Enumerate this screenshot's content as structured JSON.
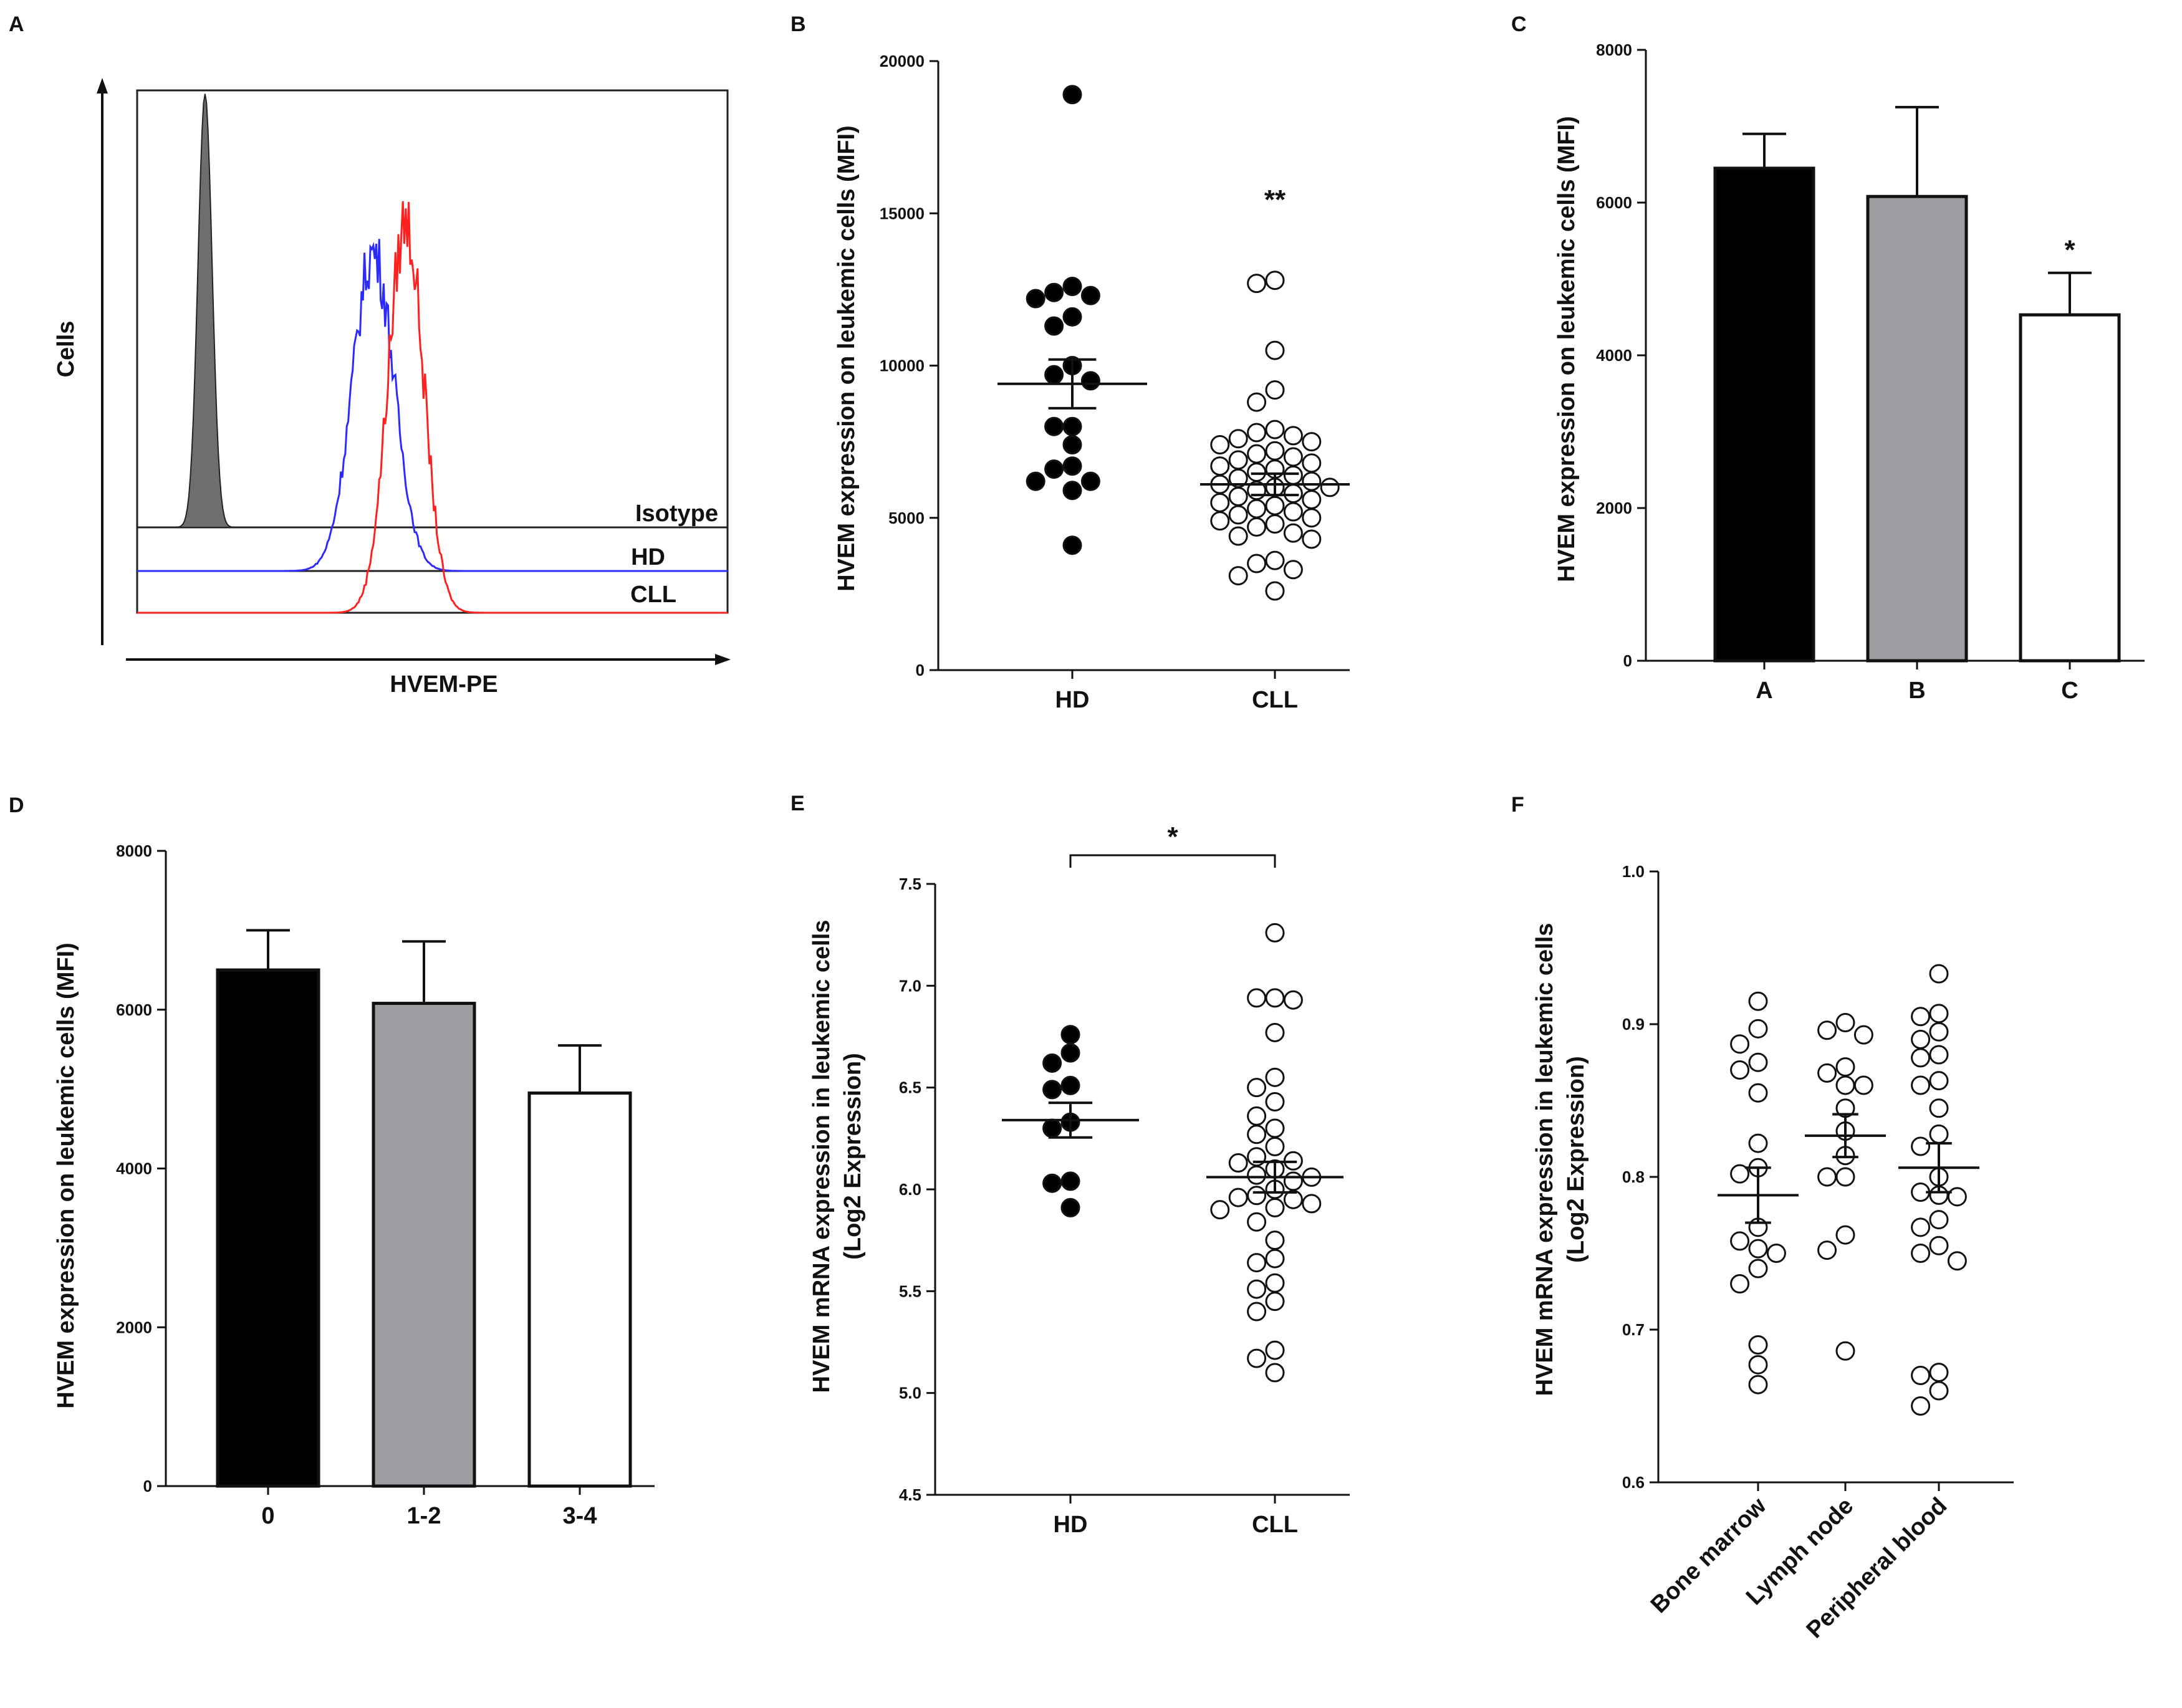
{
  "colors": {
    "black": "#000000",
    "gray": "#9e9ea2",
    "white": "#ffffff",
    "hd_line": "#2b2bff",
    "cll_line": "#ff2020",
    "isotype_fill": "#6e6e6e"
  },
  "chart_data": [
    {
      "id": "A",
      "type": "histogram",
      "panel_label": "A",
      "xlabel": "HVEM-PE",
      "ylabel": "Cells",
      "legend": [
        "Isotype",
        "HD",
        "CLL"
      ],
      "series": [
        {
          "name": "Isotype",
          "center": 0.115,
          "sd": 0.012,
          "peak": 0.83,
          "color": "isotype_fill",
          "filled": true
        },
        {
          "name": "HD",
          "center": 0.4,
          "sd": 0.035,
          "peak": 0.61,
          "color": "hd_line",
          "filled": false
        },
        {
          "name": "CLL",
          "center": 0.455,
          "sd": 0.03,
          "peak": 0.75,
          "color": "cll_line",
          "filled": false
        }
      ]
    },
    {
      "id": "B",
      "type": "scatter",
      "panel_label": "B",
      "ylabel": "HVEM expression on leukemic cells (MFI)",
      "ylim": [
        0,
        20000
      ],
      "yticks": [
        0,
        5000,
        10000,
        15000,
        20000
      ],
      "ytick_labels": [
        "0",
        "5000",
        "10000",
        "15000",
        "20000"
      ],
      "categories": [
        "HD",
        "CLL"
      ],
      "groups": [
        {
          "name": "HD",
          "filled": true,
          "mean": 9400,
          "sem": 800,
          "values": [
            18900,
            12600,
            12400,
            12200,
            12300,
            11600,
            11300,
            10000,
            9700,
            9500,
            8000,
            8000,
            7400,
            6700,
            6600,
            6200,
            6200,
            5900,
            4100
          ]
        },
        {
          "name": "CLL",
          "filled": false,
          "mean": 6100,
          "sem": 350,
          "values": [
            12800,
            12700,
            10500,
            9200,
            8800,
            7900,
            7800,
            7700,
            7600,
            7500,
            7400,
            7200,
            7100,
            7000,
            6900,
            6800,
            6700,
            6600,
            6500,
            6400,
            6300,
            6200,
            6100,
            6000,
            6000,
            5900,
            5800,
            5700,
            5600,
            5500,
            5400,
            5300,
            5200,
            5100,
            5000,
            4900,
            4800,
            4700,
            4500,
            4400,
            4300,
            3600,
            3500,
            3300,
            3100,
            2600
          ]
        }
      ],
      "annotation": "**"
    },
    {
      "id": "C",
      "type": "bar",
      "panel_label": "C",
      "ylabel": "HVEM expression on leukemic cells (MFI)",
      "ylim": [
        0,
        8000
      ],
      "yticks": [
        0,
        2000,
        4000,
        6000,
        8000
      ],
      "ytick_labels": [
        "0",
        "2000",
        "4000",
        "6000",
        "8000"
      ],
      "categories": [
        "A",
        "B",
        "C"
      ],
      "values": [
        6450,
        6080,
        4530
      ],
      "errors": [
        450,
        1170,
        550
      ],
      "fills": [
        "black",
        "gray",
        "white"
      ],
      "annotations": [
        "",
        "",
        "*"
      ]
    },
    {
      "id": "D",
      "type": "bar",
      "panel_label": "D",
      "ylabel": "HVEM expression on leukemic cells (MFI)",
      "ylim": [
        0,
        8000
      ],
      "yticks": [
        0,
        2000,
        4000,
        6000,
        8000
      ],
      "ytick_labels": [
        "0",
        "2000",
        "4000",
        "6000",
        "8000"
      ],
      "categories": [
        "0",
        "1-2",
        "3-4"
      ],
      "values": [
        6500,
        6080,
        4950
      ],
      "errors": [
        500,
        780,
        600
      ],
      "fills": [
        "black",
        "gray",
        "white"
      ]
    },
    {
      "id": "E",
      "type": "scatter",
      "panel_label": "E",
      "ylabel": "HVEM mRNA expression in leukemic cells (Log2 Expression)",
      "ylabel_lines": [
        "HVEM mRNA expression in leukemic cells",
        "(Log2 Expression)"
      ],
      "ylim": [
        4.5,
        7.5
      ],
      "yticks": [
        4.5,
        5.0,
        5.5,
        6.0,
        6.5,
        7.0,
        7.5
      ],
      "ytick_labels": [
        "4.5",
        "5.0",
        "5.5",
        "6.0",
        "6.5",
        "7.0",
        "7.5"
      ],
      "categories": [
        "HD",
        "CLL"
      ],
      "groups": [
        {
          "name": "HD",
          "filled": true,
          "mean": 6.34,
          "sem": 0.085,
          "values": [
            6.76,
            6.67,
            6.62,
            6.51,
            6.49,
            6.33,
            6.3,
            6.04,
            6.03,
            5.91
          ]
        },
        {
          "name": "CLL",
          "filled": false,
          "mean": 6.06,
          "sem": 0.075,
          "values": [
            7.26,
            6.94,
            6.94,
            6.93,
            6.77,
            6.55,
            6.5,
            6.43,
            6.36,
            6.3,
            6.27,
            6.21,
            6.16,
            6.14,
            6.13,
            6.1,
            6.07,
            6.06,
            6.04,
            6.0,
            5.97,
            5.96,
            5.95,
            5.93,
            5.91,
            5.9,
            5.84,
            5.75,
            5.66,
            5.64,
            5.54,
            5.51,
            5.45,
            5.4,
            5.21,
            5.17,
            5.1
          ]
        }
      ],
      "bracket_annotation": "*"
    },
    {
      "id": "F",
      "type": "scatter",
      "panel_label": "F",
      "ylabel": "HVEM mRNA expression in leukemic cells (Log2 Expression)",
      "ylabel_lines": [
        "HVEM mRNA expression in leukemic cells",
        "(Log2 Expression)"
      ],
      "ylim": [
        0.6,
        1.0
      ],
      "yticks": [
        0.6,
        0.7,
        0.8,
        0.9,
        1.0
      ],
      "ytick_labels": [
        "0.6",
        "0.7",
        "0.8",
        "0.9",
        "1.0"
      ],
      "categories": [
        "Bone marrow",
        "Lymph node",
        "Peripheral blood"
      ],
      "groups": [
        {
          "name": "Bone marrow",
          "filled": false,
          "mean": 0.788,
          "sem": 0.018,
          "values": [
            0.915,
            0.897,
            0.887,
            0.875,
            0.87,
            0.855,
            0.822,
            0.806,
            0.802,
            0.767,
            0.758,
            0.753,
            0.75,
            0.74,
            0.73,
            0.69,
            0.677,
            0.664
          ]
        },
        {
          "name": "Lymph node",
          "filled": false,
          "mean": 0.827,
          "sem": 0.014,
          "values": [
            0.901,
            0.896,
            0.893,
            0.872,
            0.868,
            0.86,
            0.86,
            0.845,
            0.83,
            0.814,
            0.8,
            0.8,
            0.762,
            0.752,
            0.686
          ]
        },
        {
          "name": "Peripheral blood",
          "filled": false,
          "mean": 0.806,
          "sem": 0.016,
          "values": [
            0.933,
            0.907,
            0.905,
            0.895,
            0.89,
            0.88,
            0.878,
            0.863,
            0.86,
            0.845,
            0.828,
            0.82,
            0.8,
            0.79,
            0.788,
            0.787,
            0.772,
            0.767,
            0.755,
            0.75,
            0.745,
            0.672,
            0.67,
            0.66,
            0.65
          ]
        }
      ]
    }
  ]
}
